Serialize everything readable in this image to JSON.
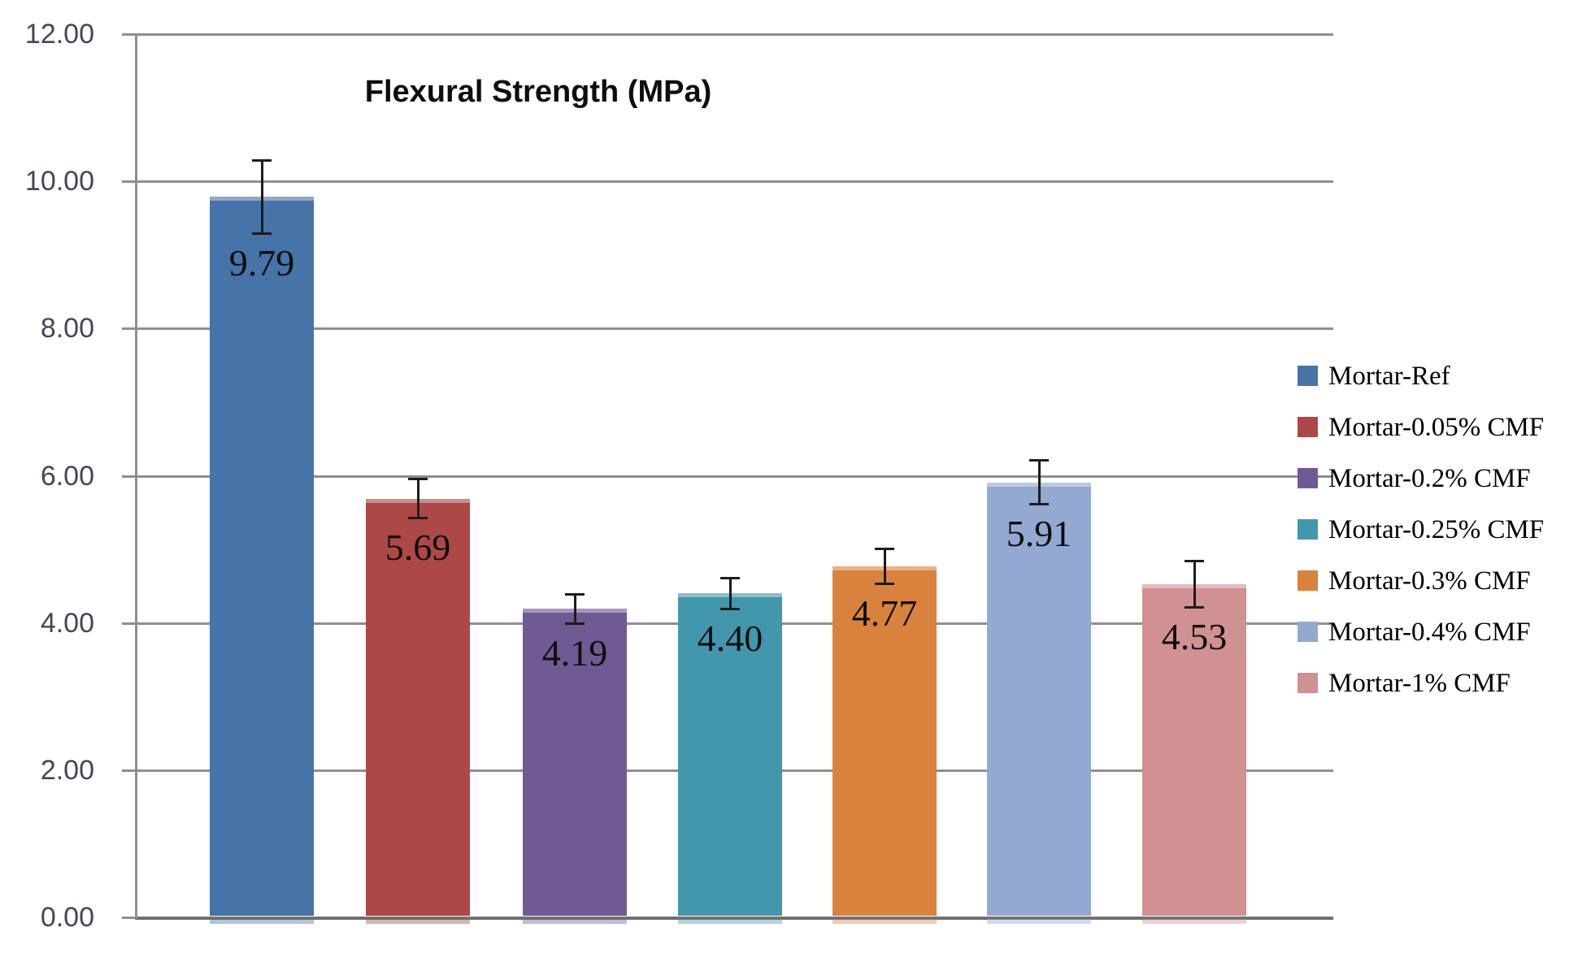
{
  "chart_data": {
    "type": "bar",
    "title": "Flexural Strength (MPa)",
    "xlabel": "",
    "ylabel": "",
    "ylim": [
      0,
      12
    ],
    "grid": true,
    "legend_position": "right",
    "yticks": [
      {
        "value": 0,
        "label": "0.00"
      },
      {
        "value": 2,
        "label": "2.00"
      },
      {
        "value": 4,
        "label": "4.00"
      },
      {
        "value": 6,
        "label": "6.00"
      },
      {
        "value": 8,
        "label": "8.00"
      },
      {
        "value": 10,
        "label": "10.00"
      },
      {
        "value": 12,
        "label": "12.00"
      }
    ],
    "categories": [
      "Mortar-Ref",
      "Mortar-0.05% CMF",
      "Mortar-0.2% CMF",
      "Mortar-0.25% CMF",
      "Mortar-0.3% CMF",
      "Mortar-0.4% CMF",
      "Mortar-1% CMF"
    ],
    "series": [
      {
        "name": "Flexural Strength",
        "values": [
          9.79,
          5.69,
          4.19,
          4.4,
          4.77,
          5.91,
          4.53
        ],
        "value_labels": [
          "9.79",
          "5.69",
          "4.19",
          "4.40",
          "4.77",
          "5.91",
          "4.53"
        ],
        "error_bars": [
          0.5,
          0.27,
          0.2,
          0.22,
          0.24,
          0.3,
          0.32
        ]
      }
    ],
    "bar_colors": [
      "#4673A8",
      "#AC4846",
      "#6F5A93",
      "#4397AD",
      "#D9823D",
      "#93A9D1",
      "#D19092"
    ],
    "legend": [
      {
        "label": "Mortar-Ref",
        "color": "#4673A8"
      },
      {
        "label": "Mortar-0.05% CMF",
        "color": "#AC4846"
      },
      {
        "label": "Mortar-0.2% CMF",
        "color": "#6F5A93"
      },
      {
        "label": "Mortar-0.25% CMF",
        "color": "#4397AD"
      },
      {
        "label": "Mortar-0.3% CMF",
        "color": "#D9823D"
      },
      {
        "label": "Mortar-0.4% CMF",
        "color": "#93A9D1"
      },
      {
        "label": "Mortar-1% CMF",
        "color": "#D19092"
      }
    ],
    "colors": {
      "background": "#FFFFFF",
      "gridline": "#8F8F8F",
      "axis": "#707070",
      "error_bar": "#1C1C1C",
      "tick_label": "#44475A",
      "title_text": "#0D0D0D",
      "legend_text": "#000000",
      "value_label": "#0E0E0E"
    }
  }
}
